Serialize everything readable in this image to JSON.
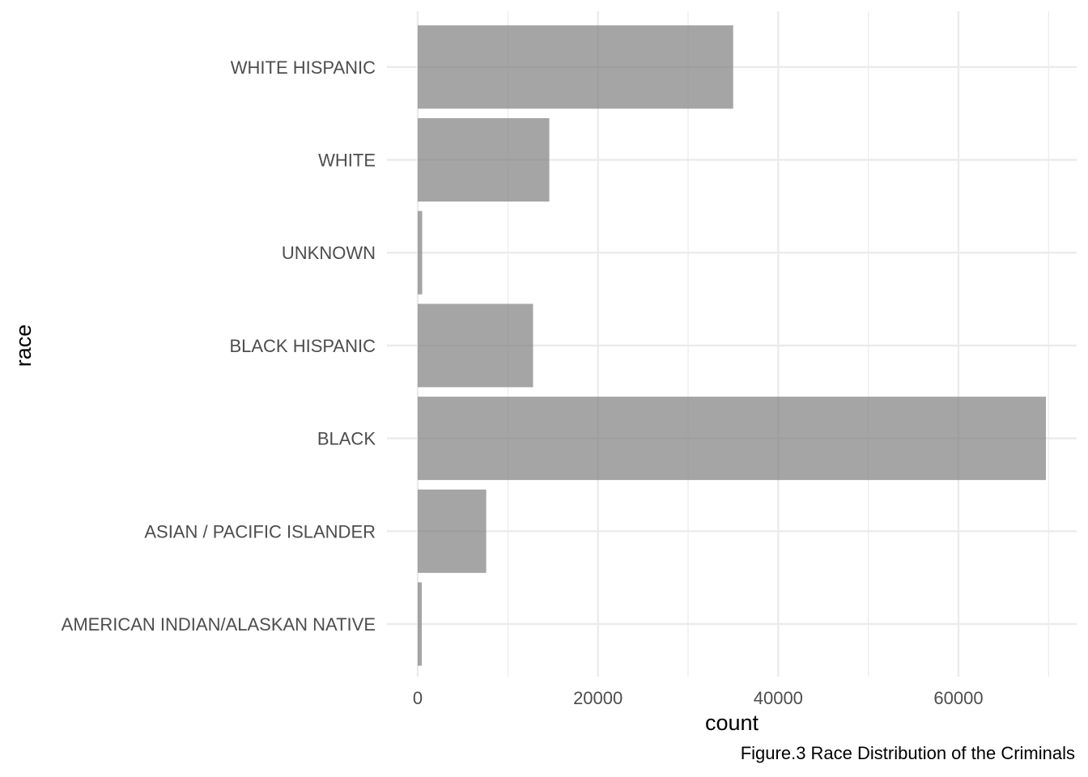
{
  "chart_data": {
    "type": "bar",
    "orientation": "horizontal",
    "categories": [
      "AMERICAN INDIAN/ALASKAN NATIVE",
      "ASIAN / PACIFIC ISLANDER",
      "BLACK",
      "BLACK HISPANIC",
      "UNKNOWN",
      "WHITE",
      "WHITE HISPANIC"
    ],
    "values": [
      450,
      7600,
      69700,
      12800,
      500,
      14600,
      35000
    ],
    "xlabel": "count",
    "ylabel": "race",
    "xlim": [
      0,
      72000
    ],
    "xticks": [
      0,
      20000,
      40000,
      60000
    ],
    "grid": true,
    "bar_color": "#7f7f7f",
    "bar_opacity": 0.7,
    "grid_color": "#ebebeb"
  },
  "caption": "Figure.3 Race Distribution of the Criminals"
}
